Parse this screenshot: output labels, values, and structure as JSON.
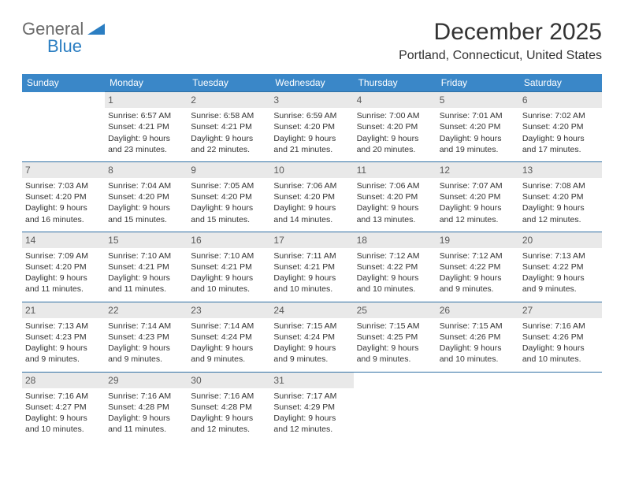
{
  "logo": {
    "general": "General",
    "blue": "Blue"
  },
  "title": "December 2025",
  "location": "Portland, Connecticut, United States",
  "colors": {
    "header_bg": "#3a87c8",
    "header_text": "#ffffff",
    "daynum_bg": "#e9e9e9",
    "daynum_text": "#5a5a5a",
    "border": "#2f6fa3",
    "accent": "#2b7ec2"
  },
  "day_headers": [
    "Sunday",
    "Monday",
    "Tuesday",
    "Wednesday",
    "Thursday",
    "Friday",
    "Saturday"
  ],
  "weeks": [
    [
      {
        "n": "",
        "lines": []
      },
      {
        "n": "1",
        "lines": [
          "Sunrise: 6:57 AM",
          "Sunset: 4:21 PM",
          "Daylight: 9 hours and 23 minutes."
        ]
      },
      {
        "n": "2",
        "lines": [
          "Sunrise: 6:58 AM",
          "Sunset: 4:21 PM",
          "Daylight: 9 hours and 22 minutes."
        ]
      },
      {
        "n": "3",
        "lines": [
          "Sunrise: 6:59 AM",
          "Sunset: 4:20 PM",
          "Daylight: 9 hours and 21 minutes."
        ]
      },
      {
        "n": "4",
        "lines": [
          "Sunrise: 7:00 AM",
          "Sunset: 4:20 PM",
          "Daylight: 9 hours and 20 minutes."
        ]
      },
      {
        "n": "5",
        "lines": [
          "Sunrise: 7:01 AM",
          "Sunset: 4:20 PM",
          "Daylight: 9 hours and 19 minutes."
        ]
      },
      {
        "n": "6",
        "lines": [
          "Sunrise: 7:02 AM",
          "Sunset: 4:20 PM",
          "Daylight: 9 hours and 17 minutes."
        ]
      }
    ],
    [
      {
        "n": "7",
        "lines": [
          "Sunrise: 7:03 AM",
          "Sunset: 4:20 PM",
          "Daylight: 9 hours and 16 minutes."
        ]
      },
      {
        "n": "8",
        "lines": [
          "Sunrise: 7:04 AM",
          "Sunset: 4:20 PM",
          "Daylight: 9 hours and 15 minutes."
        ]
      },
      {
        "n": "9",
        "lines": [
          "Sunrise: 7:05 AM",
          "Sunset: 4:20 PM",
          "Daylight: 9 hours and 15 minutes."
        ]
      },
      {
        "n": "10",
        "lines": [
          "Sunrise: 7:06 AM",
          "Sunset: 4:20 PM",
          "Daylight: 9 hours and 14 minutes."
        ]
      },
      {
        "n": "11",
        "lines": [
          "Sunrise: 7:06 AM",
          "Sunset: 4:20 PM",
          "Daylight: 9 hours and 13 minutes."
        ]
      },
      {
        "n": "12",
        "lines": [
          "Sunrise: 7:07 AM",
          "Sunset: 4:20 PM",
          "Daylight: 9 hours and 12 minutes."
        ]
      },
      {
        "n": "13",
        "lines": [
          "Sunrise: 7:08 AM",
          "Sunset: 4:20 PM",
          "Daylight: 9 hours and 12 minutes."
        ]
      }
    ],
    [
      {
        "n": "14",
        "lines": [
          "Sunrise: 7:09 AM",
          "Sunset: 4:20 PM",
          "Daylight: 9 hours and 11 minutes."
        ]
      },
      {
        "n": "15",
        "lines": [
          "Sunrise: 7:10 AM",
          "Sunset: 4:21 PM",
          "Daylight: 9 hours and 11 minutes."
        ]
      },
      {
        "n": "16",
        "lines": [
          "Sunrise: 7:10 AM",
          "Sunset: 4:21 PM",
          "Daylight: 9 hours and 10 minutes."
        ]
      },
      {
        "n": "17",
        "lines": [
          "Sunrise: 7:11 AM",
          "Sunset: 4:21 PM",
          "Daylight: 9 hours and 10 minutes."
        ]
      },
      {
        "n": "18",
        "lines": [
          "Sunrise: 7:12 AM",
          "Sunset: 4:22 PM",
          "Daylight: 9 hours and 10 minutes."
        ]
      },
      {
        "n": "19",
        "lines": [
          "Sunrise: 7:12 AM",
          "Sunset: 4:22 PM",
          "Daylight: 9 hours and 9 minutes."
        ]
      },
      {
        "n": "20",
        "lines": [
          "Sunrise: 7:13 AM",
          "Sunset: 4:22 PM",
          "Daylight: 9 hours and 9 minutes."
        ]
      }
    ],
    [
      {
        "n": "21",
        "lines": [
          "Sunrise: 7:13 AM",
          "Sunset: 4:23 PM",
          "Daylight: 9 hours and 9 minutes."
        ]
      },
      {
        "n": "22",
        "lines": [
          "Sunrise: 7:14 AM",
          "Sunset: 4:23 PM",
          "Daylight: 9 hours and 9 minutes."
        ]
      },
      {
        "n": "23",
        "lines": [
          "Sunrise: 7:14 AM",
          "Sunset: 4:24 PM",
          "Daylight: 9 hours and 9 minutes."
        ]
      },
      {
        "n": "24",
        "lines": [
          "Sunrise: 7:15 AM",
          "Sunset: 4:24 PM",
          "Daylight: 9 hours and 9 minutes."
        ]
      },
      {
        "n": "25",
        "lines": [
          "Sunrise: 7:15 AM",
          "Sunset: 4:25 PM",
          "Daylight: 9 hours and 9 minutes."
        ]
      },
      {
        "n": "26",
        "lines": [
          "Sunrise: 7:15 AM",
          "Sunset: 4:26 PM",
          "Daylight: 9 hours and 10 minutes."
        ]
      },
      {
        "n": "27",
        "lines": [
          "Sunrise: 7:16 AM",
          "Sunset: 4:26 PM",
          "Daylight: 9 hours and 10 minutes."
        ]
      }
    ],
    [
      {
        "n": "28",
        "lines": [
          "Sunrise: 7:16 AM",
          "Sunset: 4:27 PM",
          "Daylight: 9 hours and 10 minutes."
        ]
      },
      {
        "n": "29",
        "lines": [
          "Sunrise: 7:16 AM",
          "Sunset: 4:28 PM",
          "Daylight: 9 hours and 11 minutes."
        ]
      },
      {
        "n": "30",
        "lines": [
          "Sunrise: 7:16 AM",
          "Sunset: 4:28 PM",
          "Daylight: 9 hours and 12 minutes."
        ]
      },
      {
        "n": "31",
        "lines": [
          "Sunrise: 7:17 AM",
          "Sunset: 4:29 PM",
          "Daylight: 9 hours and 12 minutes."
        ]
      },
      {
        "n": "",
        "lines": []
      },
      {
        "n": "",
        "lines": []
      },
      {
        "n": "",
        "lines": []
      }
    ]
  ]
}
